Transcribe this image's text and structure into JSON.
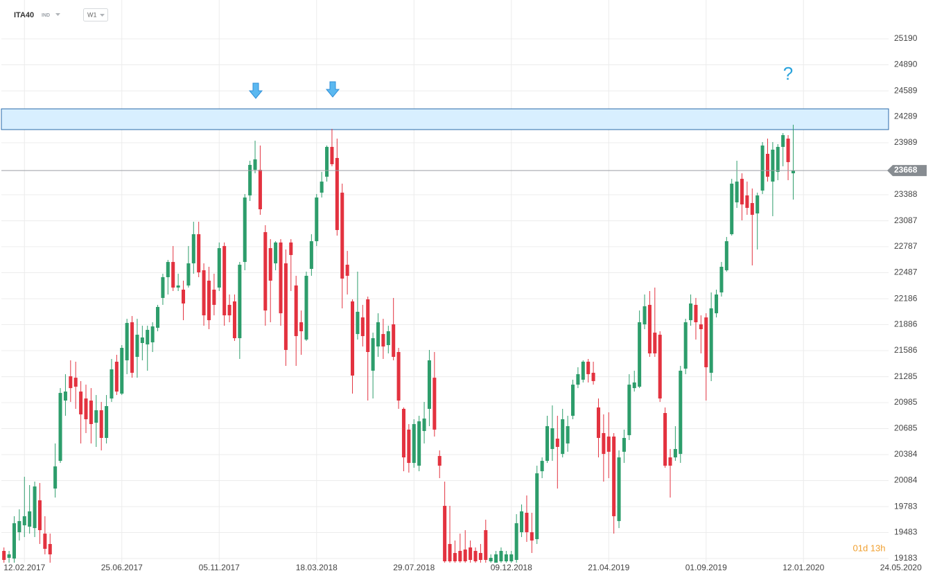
{
  "chart_data": {
    "type": "candlestick",
    "symbol": "ITA40",
    "symbol_type": "IND",
    "timeframe": "W1",
    "annotation": "?",
    "countdown": "01d 13h",
    "up_color": "#2d9d6b",
    "down_color": "#e3323f",
    "grid": true,
    "xlim": [
      -0.5,
      172.6
    ],
    "ylim": [
      19135,
      25639
    ],
    "xticks": [
      {
        "value": 4,
        "label": "12.02.2017"
      },
      {
        "value": 23,
        "label": "25.06.2017"
      },
      {
        "value": 42,
        "label": "05.11.2017"
      },
      {
        "value": 61,
        "label": "18.03.2018"
      },
      {
        "value": 80,
        "label": "29.07.2018"
      },
      {
        "value": 99,
        "label": "09.12.2018"
      },
      {
        "value": 118,
        "label": "21.04.2019"
      },
      {
        "value": 137,
        "label": "01.09.2019"
      },
      {
        "value": 156,
        "label": "12.01.2020"
      },
      {
        "value": 175,
        "label": "24.05.2020"
      }
    ],
    "yticks": [
      25190,
      24890,
      24589,
      24289,
      23989,
      23388,
      23087,
      22787,
      22487,
      22186,
      21886,
      21586,
      21285,
      20985,
      20685,
      20384,
      20084,
      19783,
      19483,
      19183
    ],
    "resistance_zone": [
      24141,
      24381
    ],
    "ohlc": [
      [
        19271,
        19311,
        19135,
        19167
      ],
      [
        19191,
        19271,
        19135,
        19231
      ],
      [
        19183,
        19672,
        19135,
        19591
      ],
      [
        19487,
        19752,
        19391,
        19616
      ],
      [
        19567,
        20128,
        19431,
        19672
      ],
      [
        19551,
        20032,
        19471,
        19728
      ],
      [
        19535,
        20072,
        19431,
        20016
      ],
      [
        19856,
        20056,
        19351,
        19511
      ],
      [
        19471,
        19672,
        19231,
        19295
      ],
      [
        19351,
        19471,
        19135,
        19231
      ],
      [
        19992,
        20513,
        19888,
        20248
      ],
      [
        20312,
        21153,
        20288,
        21097
      ],
      [
        21009,
        21314,
        20833,
        21113
      ],
      [
        21290,
        21474,
        20993,
        21153
      ],
      [
        21273,
        21458,
        20913,
        21169
      ],
      [
        21113,
        21234,
        20513,
        20849
      ],
      [
        21033,
        21193,
        20633,
        20793
      ],
      [
        21009,
        21153,
        20513,
        20737
      ],
      [
        20753,
        21073,
        20473,
        20897
      ],
      [
        20897,
        20993,
        20433,
        20577
      ],
      [
        20577,
        21073,
        20513,
        20945
      ],
      [
        21033,
        21490,
        20993,
        21370
      ],
      [
        21458,
        21538,
        21073,
        21113
      ],
      [
        21089,
        21650,
        21073,
        21618
      ],
      [
        21474,
        21954,
        21314,
        21906
      ],
      [
        21914,
        21986,
        21273,
        21330
      ],
      [
        21514,
        21954,
        21273,
        21770
      ],
      [
        21674,
        21874,
        21474,
        21738
      ],
      [
        21658,
        21874,
        21354,
        21826
      ],
      [
        21682,
        21914,
        21570,
        21866
      ],
      [
        21850,
        22115,
        21810,
        22091
      ],
      [
        22195,
        22475,
        22115,
        22435
      ],
      [
        22435,
        22635,
        22235,
        22611
      ],
      [
        22611,
        22795,
        22275,
        22315
      ],
      [
        22315,
        22475,
        22275,
        22339
      ],
      [
        22291,
        22395,
        21938,
        22131
      ],
      [
        22339,
        22795,
        22315,
        22595
      ],
      [
        22595,
        23076,
        22475,
        22932
      ],
      [
        22932,
        23076,
        22435,
        22491
      ],
      [
        22515,
        22595,
        21874,
        21994
      ],
      [
        22395,
        22555,
        21834,
        21938
      ],
      [
        22291,
        22475,
        21994,
        22115
      ],
      [
        22315,
        22836,
        22275,
        22771
      ],
      [
        22795,
        22836,
        21874,
        21994
      ],
      [
        22115,
        22235,
        21914,
        21994
      ],
      [
        22155,
        22235,
        21698,
        21730
      ],
      [
        21730,
        22611,
        21490,
        22579
      ],
      [
        22611,
        23396,
        22515,
        23356
      ],
      [
        23380,
        23781,
        23316,
        23733
      ],
      [
        23676,
        24013,
        23636,
        23797
      ],
      [
        23676,
        23957,
        23156,
        23220
      ],
      [
        22956,
        23036,
        21874,
        22050
      ],
      [
        22771,
        22875,
        21914,
        22395
      ],
      [
        22595,
        22851,
        22515,
        22836
      ],
      [
        22836,
        22875,
        21874,
        22018
      ],
      [
        22595,
        22755,
        21410,
        21594
      ],
      [
        22836,
        22875,
        22275,
        22691
      ],
      [
        22339,
        22451,
        21410,
        21754
      ],
      [
        21914,
        22050,
        21538,
        21810
      ],
      [
        21714,
        22499,
        21698,
        22451
      ],
      [
        22531,
        22932,
        22451,
        22851
      ],
      [
        22851,
        23396,
        22795,
        23356
      ],
      [
        23412,
        23652,
        23356,
        23540
      ],
      [
        23596,
        23957,
        23540,
        23941
      ],
      [
        23941,
        24149,
        23717,
        23741
      ],
      [
        23813,
        24037,
        22916,
        22980
      ],
      [
        23412,
        23516,
        22075,
        22419
      ],
      [
        22579,
        22739,
        22235,
        22451
      ],
      [
        22155,
        22179,
        21089,
        21298
      ],
      [
        21778,
        22499,
        21714,
        22035
      ],
      [
        21970,
        22115,
        21634,
        21754
      ],
      [
        22179,
        22211,
        21009,
        21570
      ],
      [
        21354,
        21794,
        21033,
        21730
      ],
      [
        21634,
        22018,
        21514,
        21914
      ],
      [
        21778,
        21954,
        21490,
        21634
      ],
      [
        21650,
        21874,
        21554,
        21810
      ],
      [
        21890,
        22195,
        21474,
        21514
      ],
      [
        21570,
        21618,
        20913,
        21009
      ],
      [
        20913,
        20929,
        20192,
        20352
      ],
      [
        20673,
        20737,
        20176,
        20288
      ],
      [
        20288,
        20793,
        20232,
        20737
      ],
      [
        20256,
        20833,
        20192,
        20769
      ],
      [
        20657,
        20993,
        20513,
        20801
      ],
      [
        20913,
        21594,
        20713,
        21474
      ],
      [
        21273,
        21570,
        20593,
        20673
      ],
      [
        20368,
        20433,
        20112,
        20256
      ],
      [
        19792,
        20072,
        19135,
        19151
      ],
      [
        19351,
        19792,
        19135,
        19151
      ],
      [
        19247,
        19391,
        19135,
        19151
      ],
      [
        19271,
        19471,
        19135,
        19151
      ],
      [
        19287,
        19511,
        19135,
        19151
      ],
      [
        19311,
        19391,
        19135,
        19167
      ],
      [
        19271,
        19311,
        19135,
        19151
      ],
      [
        19247,
        19351,
        19135,
        19167
      ],
      [
        19511,
        19632,
        19135,
        19167
      ],
      [
        19151,
        19231,
        19135,
        19191
      ],
      [
        19135,
        19271,
        19135,
        19231
      ],
      [
        19151,
        19311,
        19135,
        19271
      ],
      [
        19151,
        19271,
        19135,
        19231
      ],
      [
        19151,
        19271,
        19135,
        19231
      ],
      [
        19167,
        19696,
        19135,
        19591
      ],
      [
        19487,
        19808,
        19431,
        19728
      ],
      [
        19712,
        19912,
        19375,
        19487
      ],
      [
        19487,
        19712,
        19247,
        19391
      ],
      [
        19407,
        20256,
        19351,
        20168
      ],
      [
        20192,
        20352,
        20112,
        20312
      ],
      [
        20312,
        20833,
        20288,
        20713
      ],
      [
        20449,
        20953,
        20312,
        20689
      ],
      [
        20569,
        20833,
        19992,
        20473
      ],
      [
        20392,
        20913,
        20352,
        20793
      ],
      [
        20513,
        20833,
        20417,
        20713
      ],
      [
        20833,
        21250,
        20793,
        21193
      ],
      [
        21193,
        21394,
        21153,
        21314
      ],
      [
        21250,
        21474,
        21218,
        21458
      ],
      [
        21458,
        21490,
        21218,
        21314
      ],
      [
        21330,
        21458,
        21193,
        21234
      ],
      [
        20929,
        21033,
        20352,
        20577
      ],
      [
        20633,
        20849,
        20072,
        20392
      ],
      [
        20593,
        20873,
        20112,
        20417
      ],
      [
        20593,
        20633,
        19471,
        19672
      ],
      [
        19616,
        20433,
        19535,
        20352
      ],
      [
        20417,
        20673,
        20288,
        20577
      ],
      [
        20609,
        21314,
        20553,
        21193
      ],
      [
        21153,
        21354,
        21113,
        21218
      ],
      [
        21169,
        22050,
        21153,
        21914
      ],
      [
        21890,
        22235,
        21834,
        22099
      ],
      [
        22115,
        22275,
        21514,
        21554
      ],
      [
        21794,
        22315,
        21514,
        21554
      ],
      [
        21770,
        21810,
        20993,
        21033
      ],
      [
        20865,
        20929,
        20232,
        20256
      ],
      [
        20352,
        20449,
        19888,
        20256
      ],
      [
        20352,
        20713,
        20312,
        20449
      ],
      [
        20392,
        21410,
        20288,
        21354
      ],
      [
        21378,
        21954,
        21314,
        21914
      ],
      [
        21938,
        22235,
        21874,
        22131
      ],
      [
        22115,
        22195,
        21714,
        21914
      ],
      [
        21890,
        21994,
        21554,
        21834
      ],
      [
        21970,
        22018,
        21009,
        21394
      ],
      [
        21330,
        22259,
        21234,
        22075
      ],
      [
        22018,
        22291,
        21970,
        22235
      ],
      [
        22259,
        22611,
        22211,
        22555
      ],
      [
        22515,
        22900,
        22499,
        22851
      ],
      [
        22932,
        23572,
        22916,
        23516
      ],
      [
        23300,
        23781,
        23236,
        23540
      ],
      [
        23572,
        23636,
        23092,
        23276
      ],
      [
        23380,
        23540,
        23156,
        23236
      ],
      [
        23292,
        23460,
        22571,
        23156
      ],
      [
        23172,
        23412,
        22755,
        23380
      ],
      [
        23436,
        23997,
        23396,
        23957
      ],
      [
        23861,
        24037,
        23540,
        23596
      ],
      [
        23540,
        23997,
        23140,
        23909
      ],
      [
        23652,
        23973,
        23556,
        23941
      ],
      [
        23941,
        24101,
        23717,
        24077
      ],
      [
        24037,
        24077,
        23556,
        23765
      ],
      [
        23636,
        24197,
        23332,
        23668
      ]
    ]
  }
}
